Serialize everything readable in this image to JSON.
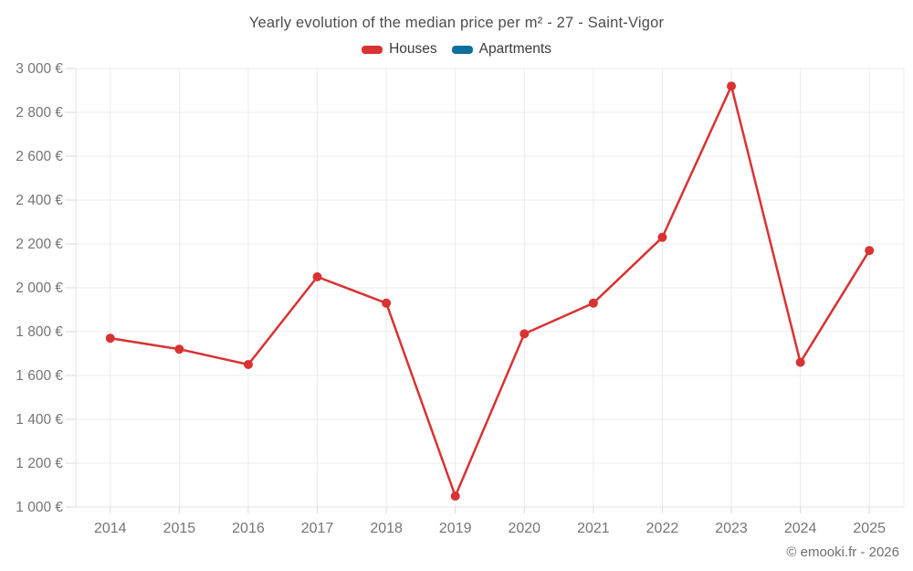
{
  "title": "Yearly evolution of the median price per m² - 27 - Saint-Vigor",
  "legend": {
    "items": [
      {
        "label": "Houses",
        "color": "#d93232"
      },
      {
        "label": "Apartments",
        "color": "#0e6e9c"
      }
    ]
  },
  "footer": {
    "credit": "© emooki.fr - 2026"
  },
  "chart_data": {
    "type": "line",
    "title": "Yearly evolution of the median price per m² - 27 - Saint-Vigor",
    "categories": [
      "2014",
      "2015",
      "2016",
      "2017",
      "2018",
      "2019",
      "2020",
      "2021",
      "2022",
      "2023",
      "2024",
      "2025"
    ],
    "series": [
      {
        "name": "Houses",
        "color": "#d93232",
        "values": [
          1770,
          1720,
          1650,
          2050,
          1930,
          1050,
          1790,
          1930,
          2230,
          2920,
          1660,
          2170
        ]
      },
      {
        "name": "Apartments",
        "color": "#0e6e9c",
        "values": []
      }
    ],
    "xlabel": "",
    "ylabel": "",
    "ylim": [
      1000,
      3000
    ],
    "y_tick_step": 200,
    "y_tick_labels": [
      "1 000 €",
      "1 200 €",
      "1 400 €",
      "1 600 €",
      "1 800 €",
      "2 000 €",
      "2 200 €",
      "2 400 €",
      "2 600 €",
      "2 800 €",
      "3 000 €"
    ],
    "grid": true,
    "legend_position": "top",
    "marker": "circle"
  },
  "style": {
    "grid_color": "#ececec",
    "axis_line_color": "#e0e0e0",
    "tick_color": "#d9d9d9",
    "axis_label_color": "#757575"
  }
}
